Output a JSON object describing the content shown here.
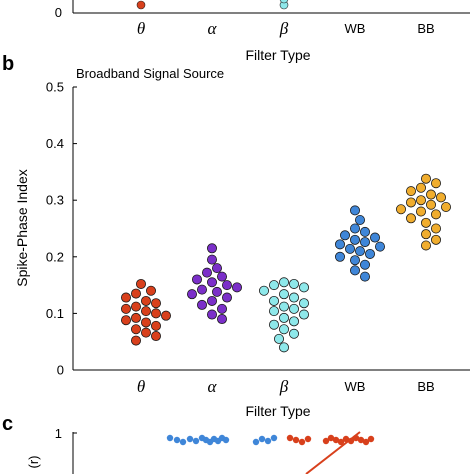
{
  "top_panel": {
    "ytick": "0",
    "categories": [
      "θ",
      "α",
      "β",
      "WB",
      "BB"
    ],
    "xlabel": "Filter Type"
  },
  "panel_b": {
    "letter": "b",
    "colors": [
      "#d8401c",
      "#7b2fc9",
      "#8ee8ea",
      "#3f86d8",
      "#f0ad2e"
    ]
  },
  "panel_c": {
    "letter": "c",
    "ytick": "1",
    "ylabel_fragment": "(r)",
    "colors": {
      "blue": "#3f86d8",
      "red": "#d8401c"
    }
  },
  "chart_data": {
    "type": "scatter",
    "title": "Broadband Signal Source",
    "xlabel": "Filter Type",
    "ylabel": "Spike-Phase Index",
    "ylim": [
      0,
      0.5
    ],
    "yticks": [
      "0",
      "0.1",
      "0.2",
      "0.3",
      "0.4",
      "0.5"
    ],
    "categories": [
      "θ",
      "α",
      "β",
      "WB",
      "BB"
    ],
    "grid": false,
    "series": [
      {
        "category": "θ",
        "values": [
          0.152,
          0.14,
          0.135,
          0.128,
          0.122,
          0.118,
          0.112,
          0.108,
          0.104,
          0.1,
          0.096,
          0.092,
          0.088,
          0.084,
          0.078,
          0.072,
          0.066,
          0.06,
          0.052
        ]
      },
      {
        "category": "α",
        "values": [
          0.215,
          0.195,
          0.18,
          0.172,
          0.165,
          0.16,
          0.155,
          0.15,
          0.146,
          0.142,
          0.138,
          0.134,
          0.128,
          0.122,
          0.115,
          0.108,
          0.098,
          0.09
        ]
      },
      {
        "category": "β",
        "values": [
          0.155,
          0.152,
          0.15,
          0.146,
          0.14,
          0.134,
          0.128,
          0.122,
          0.118,
          0.112,
          0.108,
          0.104,
          0.098,
          0.092,
          0.086,
          0.08,
          0.072,
          0.064,
          0.055,
          0.04
        ]
      },
      {
        "category": "WB",
        "values": [
          0.282,
          0.265,
          0.25,
          0.244,
          0.238,
          0.234,
          0.23,
          0.226,
          0.222,
          0.218,
          0.214,
          0.21,
          0.205,
          0.2,
          0.194,
          0.186,
          0.176,
          0.165
        ]
      },
      {
        "category": "BB",
        "values": [
          0.338,
          0.33,
          0.322,
          0.316,
          0.31,
          0.305,
          0.3,
          0.296,
          0.292,
          0.288,
          0.284,
          0.28,
          0.275,
          0.268,
          0.26,
          0.25,
          0.24,
          0.23,
          0.22
        ]
      }
    ]
  }
}
